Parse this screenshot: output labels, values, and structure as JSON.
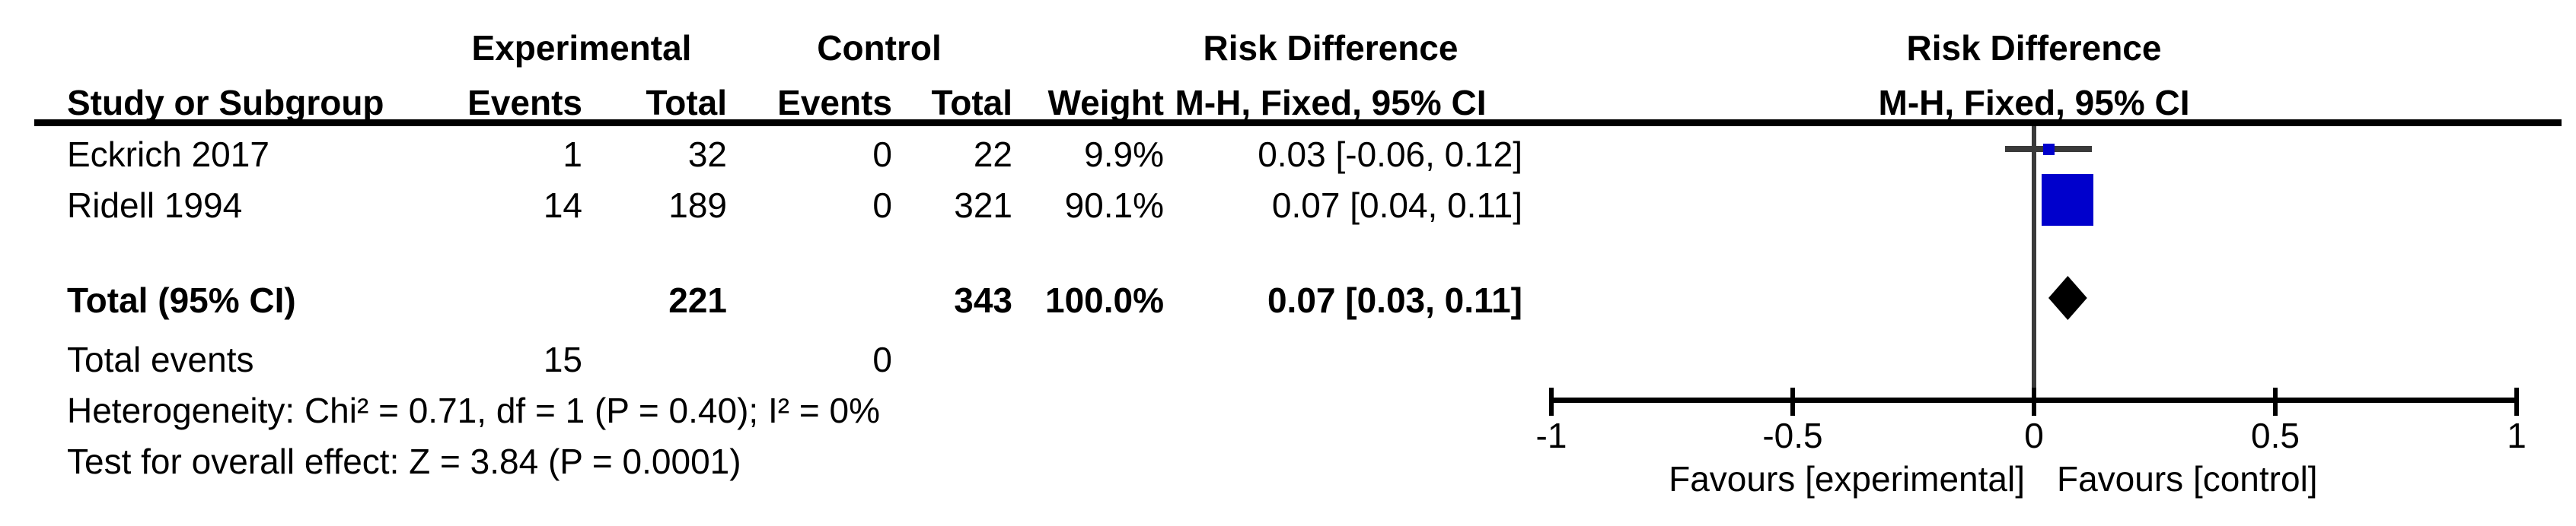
{
  "header": {
    "study": "Study or Subgroup",
    "group_experimental": "Experimental",
    "group_control": "Control",
    "events": "Events",
    "total": "Total",
    "weight": "Weight",
    "effect_line1": "Risk Difference",
    "effect_line2": "M-H, Fixed, 95% CI",
    "plot_line1": "Risk Difference",
    "plot_line2": "M-H, Fixed, 95% CI"
  },
  "table": {
    "rows": [
      {
        "name": "Eckrich 2017",
        "exp_events": "1",
        "exp_total": "32",
        "ctrl_events": "0",
        "ctrl_total": "22",
        "weight": "9.9%",
        "estimate": "0.03 [-0.06, 0.12]"
      },
      {
        "name": "Ridell 1994",
        "exp_events": "14",
        "exp_total": "189",
        "ctrl_events": "0",
        "ctrl_total": "321",
        "weight": "90.1%",
        "estimate": "0.07 [0.04, 0.11]"
      }
    ],
    "total_row": {
      "label": "Total (95% CI)",
      "exp_total": "221",
      "ctrl_total": "343",
      "weight": "100.0%",
      "estimate": "0.07 [0.03, 0.11]"
    },
    "total_events": {
      "label": "Total events",
      "exp": "15",
      "ctrl": "0"
    }
  },
  "footnotes": {
    "heterogeneity": "Heterogeneity: Chi² = 0.71, df = 1 (P = 0.40); I² = 0%",
    "overall_effect": "Test for overall effect: Z = 3.84 (P = 0.0001)"
  },
  "chart_data": {
    "type": "forest",
    "effect_measure": "Risk Difference",
    "method": "M-H, Fixed, 95% CI",
    "studies": [
      {
        "name": "Eckrich 2017",
        "events_exp": 1,
        "total_exp": 32,
        "events_ctrl": 0,
        "total_ctrl": 22,
        "weight_pct": 9.9,
        "estimate": 0.03,
        "ci_low": -0.06,
        "ci_high": 0.12
      },
      {
        "name": "Ridell 1994",
        "events_exp": 14,
        "total_exp": 189,
        "events_ctrl": 0,
        "total_ctrl": 321,
        "weight_pct": 90.1,
        "estimate": 0.07,
        "ci_low": 0.04,
        "ci_high": 0.11
      }
    ],
    "total": {
      "label": "Total (95% CI)",
      "total_exp": 221,
      "total_ctrl": 343,
      "events_exp": 15,
      "events_ctrl": 0,
      "weight_pct": 100.0,
      "estimate": 0.07,
      "ci_low": 0.03,
      "ci_high": 0.11
    },
    "heterogeneity": "Chi² = 0.71, df = 1 (P = 0.40); I² = 0%",
    "overall_effect": "Z = 3.84 (P = 0.0001)",
    "xlim": [
      -1,
      1
    ],
    "xticks": [
      -1,
      -0.5,
      0,
      0.5,
      1
    ],
    "favours": [
      "Favours [experimental]",
      "Favours [control]"
    ],
    "marker_color": "#0000cc",
    "line_color": "#3a3a3a",
    "axis_color": "#000000"
  }
}
